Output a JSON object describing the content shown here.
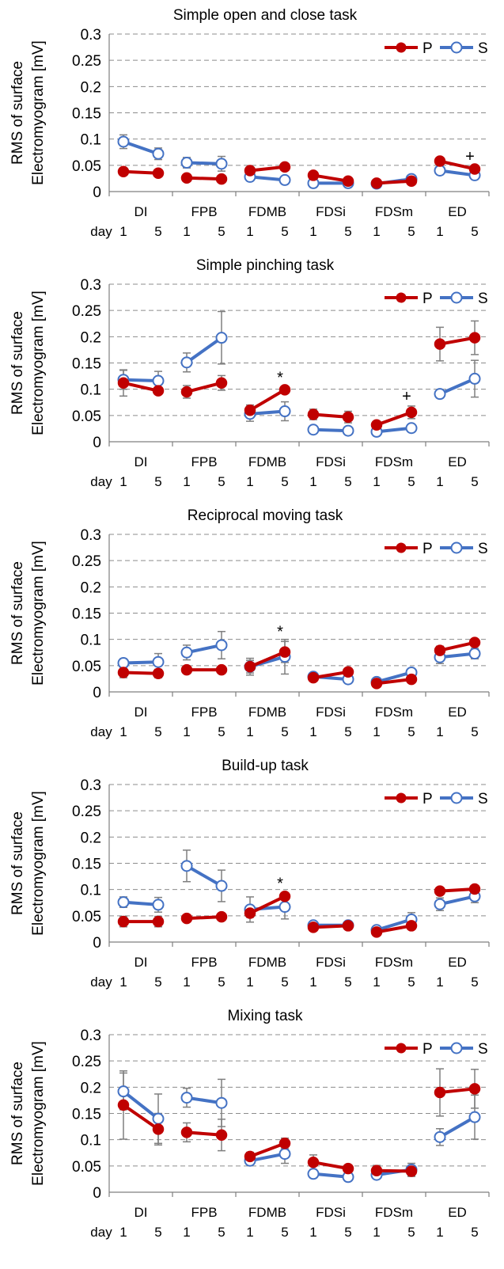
{
  "shared": {
    "ylabel_line1": "RMS of surface",
    "ylabel_line2": "Electromyogram [mV]",
    "day_label": "day",
    "day_ticks": [
      "1",
      "5"
    ],
    "legend": {
      "P": {
        "label": "P",
        "color": "#c00000"
      },
      "S": {
        "label": "S",
        "color": "#4472c4"
      }
    },
    "yticks": [
      "0",
      "0.05",
      "0.1",
      "0.15",
      "0.2",
      "0.25",
      "0.3"
    ]
  },
  "chart_data": [
    {
      "type": "line",
      "title": "Simple open and close task",
      "categories": [
        "DI",
        "FPB",
        "FDMB",
        "FDSi",
        "FDSm",
        "ED"
      ],
      "x_sub": [
        "1",
        "5"
      ],
      "ylim": [
        0,
        0.3
      ],
      "grid": true,
      "legend_position": "top-right",
      "series": [
        {
          "name": "P",
          "values": [
            [
              0.038,
              0.035
            ],
            [
              0.026,
              0.024
            ],
            [
              0.04,
              0.047
            ],
            [
              0.031,
              0.02
            ],
            [
              0.016,
              0.02
            ],
            [
              0.058,
              0.043
            ]
          ],
          "errors": [
            [
              0.005,
              0.006
            ],
            [
              0.004,
              0.004
            ],
            [
              0.006,
              0.005
            ],
            [
              0.005,
              0.003
            ],
            [
              0.003,
              0.003
            ],
            [
              0.006,
              0.005
            ]
          ]
        },
        {
          "name": "S",
          "values": [
            [
              0.095,
              0.072
            ],
            [
              0.055,
              0.053
            ],
            [
              0.028,
              0.022
            ],
            [
              0.016,
              0.016
            ],
            [
              0.015,
              0.024
            ],
            [
              0.04,
              0.031
            ]
          ],
          "errors": [
            [
              0.013,
              0.011
            ],
            [
              0.01,
              0.014
            ],
            [
              0.005,
              0.004
            ],
            [
              0.003,
              0.003
            ],
            [
              0.003,
              0.005
            ],
            [
              0.006,
              0.005
            ]
          ]
        }
      ],
      "annotations": [
        {
          "category": "ED",
          "day": "5",
          "text": "+"
        }
      ]
    },
    {
      "type": "line",
      "title": "Simple pinching task",
      "categories": [
        "DI",
        "FPB",
        "FDMB",
        "FDSi",
        "FDSm",
        "ED"
      ],
      "x_sub": [
        "1",
        "5"
      ],
      "ylim": [
        0,
        0.3
      ],
      "grid": true,
      "legend_position": "top-right",
      "series": [
        {
          "name": "P",
          "values": [
            [
              0.112,
              0.097
            ],
            [
              0.095,
              0.112
            ],
            [
              0.06,
              0.099
            ],
            [
              0.052,
              0.047
            ],
            [
              0.032,
              0.056
            ],
            [
              0.186,
              0.198
            ]
          ],
          "errors": [
            [
              0.025,
              0.006
            ],
            [
              0.012,
              0.014
            ],
            [
              0.01,
              0.004
            ],
            [
              0.01,
              0.011
            ],
            [
              0.006,
              0.012
            ],
            [
              0.032,
              0.032
            ]
          ]
        },
        {
          "name": "S",
          "values": [
            [
              0.118,
              0.116
            ],
            [
              0.151,
              0.198
            ],
            [
              0.053,
              0.058
            ],
            [
              0.023,
              0.021
            ],
            [
              0.019,
              0.026
            ],
            [
              0.091,
              0.12
            ]
          ],
          "errors": [
            [
              0.018,
              0.018
            ],
            [
              0.018,
              0.05
            ],
            [
              0.014,
              0.018
            ],
            [
              0.004,
              0.004
            ],
            [
              0.004,
              0.006
            ],
            [
              0.004,
              0.035
            ]
          ]
        }
      ],
      "annotations": [
        {
          "category": "FDMB",
          "day": "5",
          "text": "*"
        },
        {
          "category": "FDSm",
          "day": "5",
          "text": "+"
        }
      ]
    },
    {
      "type": "line",
      "title": "Reciprocal moving task",
      "categories": [
        "DI",
        "FPB",
        "FDMB",
        "FDSi",
        "FDSm",
        "ED"
      ],
      "x_sub": [
        "1",
        "5"
      ],
      "ylim": [
        0,
        0.3
      ],
      "grid": true,
      "legend_position": "top-right",
      "series": [
        {
          "name": "P",
          "values": [
            [
              0.037,
              0.035
            ],
            [
              0.042,
              0.042
            ],
            [
              0.048,
              0.076
            ],
            [
              0.027,
              0.038
            ],
            [
              0.016,
              0.024
            ],
            [
              0.079,
              0.094
            ]
          ],
          "errors": [
            [
              0.01,
              0.008
            ],
            [
              0.006,
              0.006
            ],
            [
              0.012,
              0.02
            ],
            [
              0.005,
              0.006
            ],
            [
              0.004,
              0.004
            ],
            [
              0.008,
              0.006
            ]
          ]
        },
        {
          "name": "S",
          "values": [
            [
              0.055,
              0.057
            ],
            [
              0.075,
              0.089
            ],
            [
              0.048,
              0.067
            ],
            [
              0.029,
              0.024
            ],
            [
              0.019,
              0.037
            ],
            [
              0.066,
              0.073
            ]
          ],
          "errors": [
            [
              0.008,
              0.016
            ],
            [
              0.014,
              0.026
            ],
            [
              0.016,
              0.033
            ],
            [
              0.004,
              0.004
            ],
            [
              0.004,
              0.006
            ],
            [
              0.012,
              0.01
            ]
          ]
        }
      ],
      "annotations": [
        {
          "category": "FDMB",
          "day": "5",
          "text": "*"
        }
      ]
    },
    {
      "type": "line",
      "title": "Build-up task",
      "categories": [
        "DI",
        "FPB",
        "FDMB",
        "FDSi",
        "FDSm",
        "ED"
      ],
      "x_sub": [
        "1",
        "5"
      ],
      "ylim": [
        0,
        0.3
      ],
      "grid": true,
      "legend_position": "top-right",
      "series": [
        {
          "name": "P",
          "values": [
            [
              0.039,
              0.039
            ],
            [
              0.045,
              0.048
            ],
            [
              0.055,
              0.087
            ],
            [
              0.028,
              0.031
            ],
            [
              0.019,
              0.031
            ],
            [
              0.097,
              0.101
            ]
          ],
          "errors": [
            [
              0.01,
              0.01
            ],
            [
              0.005,
              0.006
            ],
            [
              0.008,
              0.006
            ],
            [
              0.004,
              0.004
            ],
            [
              0.004,
              0.005
            ],
            [
              0.006,
              0.006
            ]
          ]
        },
        {
          "name": "S",
          "values": [
            [
              0.076,
              0.071
            ],
            [
              0.145,
              0.107
            ],
            [
              0.062,
              0.067
            ],
            [
              0.032,
              0.032
            ],
            [
              0.023,
              0.043
            ],
            [
              0.072,
              0.087
            ]
          ],
          "errors": [
            [
              0.01,
              0.014
            ],
            [
              0.03,
              0.03
            ],
            [
              0.024,
              0.023
            ],
            [
              0.005,
              0.005
            ],
            [
              0.005,
              0.013
            ],
            [
              0.012,
              0.012
            ]
          ]
        }
      ],
      "annotations": [
        {
          "category": "FDMB",
          "day": "5",
          "text": "*"
        }
      ]
    },
    {
      "type": "line",
      "title": "Mixing task",
      "categories": [
        "DI",
        "FPB",
        "FDMB",
        "FDSi",
        "FDSm",
        "ED"
      ],
      "x_sub": [
        "1",
        "5"
      ],
      "ylim": [
        0,
        0.3
      ],
      "grid": true,
      "legend_position": "top-right",
      "series": [
        {
          "name": "P",
          "values": [
            [
              0.166,
              0.12
            ],
            [
              0.114,
              0.109
            ],
            [
              0.068,
              0.093
            ],
            [
              0.057,
              0.045
            ],
            [
              0.041,
              0.04
            ],
            [
              0.19,
              0.197
            ]
          ],
          "errors": [
            [
              0.065,
              0.03
            ],
            [
              0.018,
              0.03
            ],
            [
              0.008,
              0.01
            ],
            [
              0.014,
              0.006
            ],
            [
              0.01,
              0.01
            ],
            [
              0.045,
              0.037
            ]
          ]
        },
        {
          "name": "S",
          "values": [
            [
              0.192,
              0.14
            ],
            [
              0.18,
              0.17
            ],
            [
              0.06,
              0.073
            ],
            [
              0.035,
              0.029
            ],
            [
              0.033,
              0.043
            ],
            [
              0.105,
              0.143
            ]
          ],
          "errors": [
            [
              0.035,
              0.047
            ],
            [
              0.018,
              0.045
            ],
            [
              0.006,
              0.018
            ],
            [
              0.005,
              0.005
            ],
            [
              0.005,
              0.012
            ],
            [
              0.016,
              0.042
            ]
          ]
        }
      ],
      "annotations": []
    }
  ]
}
